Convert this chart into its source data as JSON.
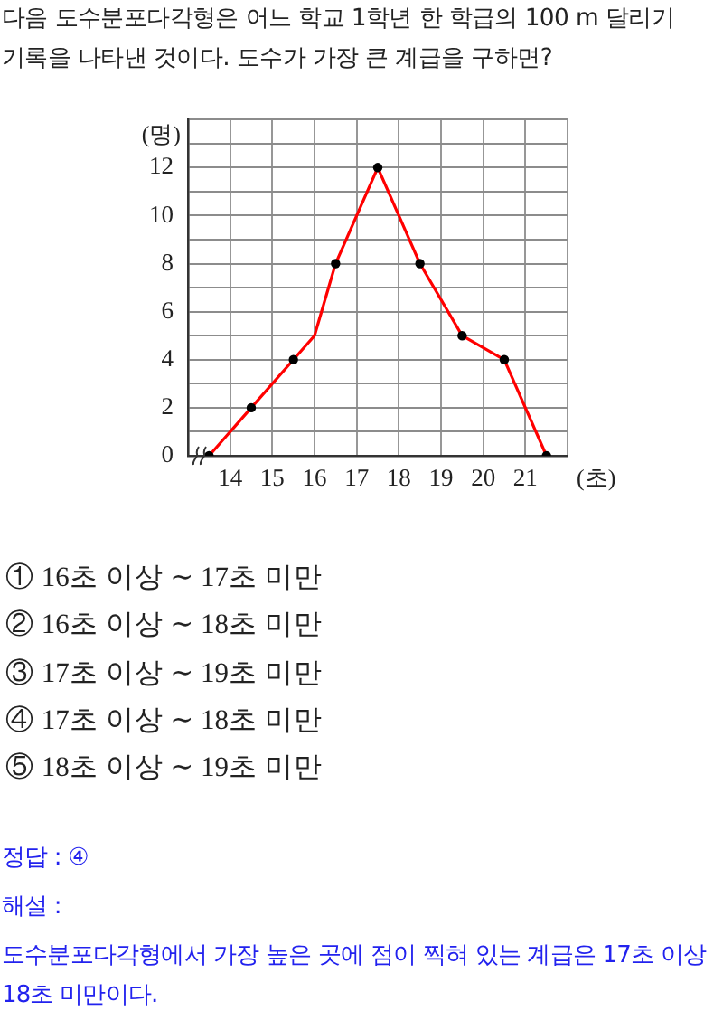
{
  "chart_data": {
    "type": "line",
    "title": "다음 도수분포다각형은 어느 학교 1학년 한 학급의 100 m 달리기 기록을 나타낸 것이다. 도수가 가장 큰 계급을 구하면?",
    "xlabel": "(초)",
    "ylabel": "(명)",
    "series": [
      {
        "type": "line",
        "color": "#ff0000",
        "marker": "none",
        "x": [
          13.5,
          14.5,
          15.5,
          16,
          16.5,
          17.5,
          18.5,
          19.5,
          20.5,
          21.5
        ],
        "values": [
          0,
          2,
          4,
          5,
          8,
          12,
          8,
          5,
          4,
          0
        ]
      },
      {
        "type": "scatter",
        "color": "#000000",
        "marker": "circle",
        "x": [
          13.5,
          14.5,
          15.5,
          16.5,
          17.5,
          18.5,
          19.5,
          20.5,
          21.5
        ],
        "values": [
          0,
          2,
          4,
          8,
          12,
          8,
          5,
          4,
          0
        ]
      }
    ],
    "xlim": [
      13,
      22
    ],
    "xticks": [
      14,
      15,
      16,
      17,
      18,
      19,
      20,
      21,
      {
        "value": 22,
        "label": null
      }
    ],
    "ylim": [
      0,
      14
    ],
    "yticks": [
      0,
      {
        "value": 1,
        "label": null
      },
      2,
      {
        "value": 3,
        "label": null
      },
      4,
      {
        "value": 5,
        "label": null
      },
      6,
      {
        "value": 7,
        "label": null
      },
      8,
      {
        "value": 9,
        "label": null
      },
      10,
      {
        "value": 11,
        "label": null
      },
      12,
      {
        "value": 13,
        "label": null
      },
      {
        "value": 14,
        "label": null
      }
    ],
    "grid": true,
    "annotations": [
      "① 16초 이상 ∼ 17초 미만",
      "② 16초 이상 ∼ 18초 미만",
      "③ 17초 이상 ∼ 19초 미만",
      "④ 17초 이상 ∼ 18초 미만",
      "⑤ 18초 이상 ∼ 19초 미만",
      "정답 : ④",
      "해설 :",
      "도수분포다각형에서 가장 높은 곳에 점이 찍혀 있는 계급은 17초 이상 18초 미만이다."
    ]
  }
}
